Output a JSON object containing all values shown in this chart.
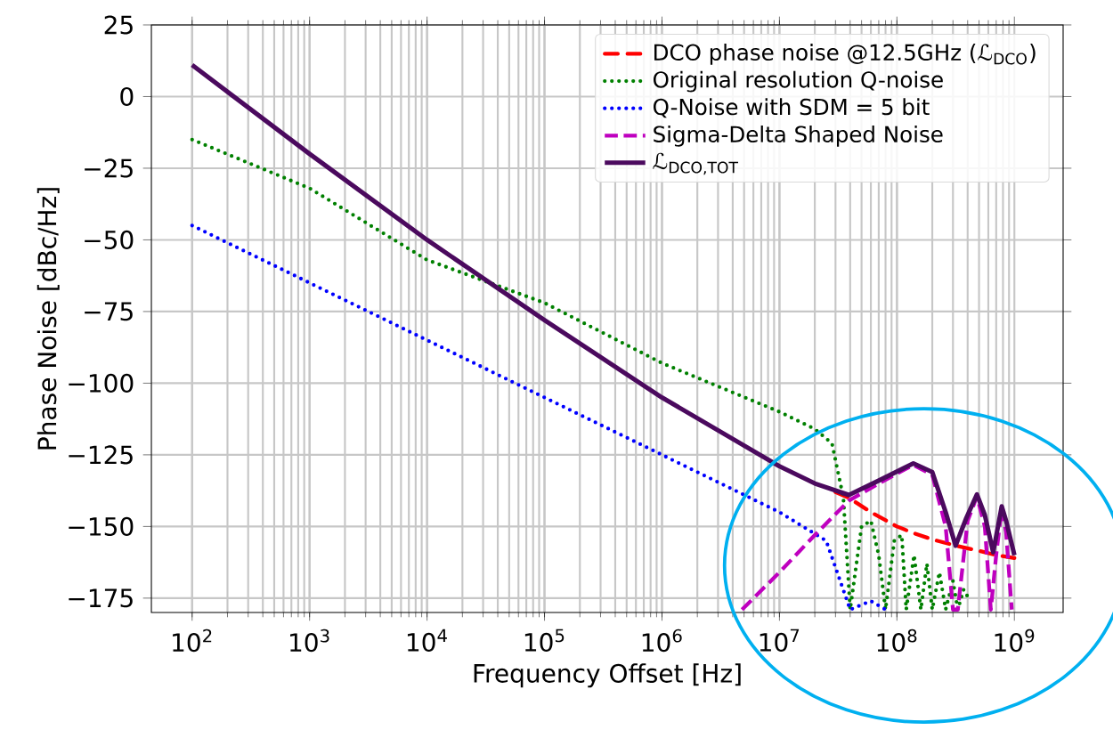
{
  "chart_data": {
    "type": "line",
    "xlabel": "Frequency Offset [Hz]",
    "ylabel": "Phase Noise [dBc/Hz]",
    "log": "x",
    "grid": true,
    "legend": "top right",
    "marker": "none",
    "xlim": [
      45,
      2600000000.0
    ],
    "ylim": [
      -180,
      25
    ],
    "xticks": [
      {
        "value": 100,
        "label": "10$^{2}$"
      },
      {
        "value": 1000,
        "label": "10$^{3}$"
      },
      {
        "value": 10000,
        "label": "10$^{4}$"
      },
      {
        "value": 100000,
        "label": "10$^{5}$"
      },
      {
        "value": 1000000,
        "label": "10$^{6}$"
      },
      {
        "value": 10000000,
        "label": "10$^{7}$"
      },
      {
        "value": 100000000,
        "label": "10$^{8}$"
      },
      {
        "value": 1000000000,
        "label": "10$^{9}$"
      }
    ],
    "yticks": [
      {
        "value": -175,
        "label": "−175"
      },
      {
        "value": -150,
        "label": "−150"
      },
      {
        "value": -125,
        "label": "−125"
      },
      {
        "value": -100,
        "label": "−100"
      },
      {
        "value": -75,
        "label": "−75"
      },
      {
        "value": -50,
        "label": "−50"
      },
      {
        "value": -25,
        "label": "−25"
      },
      0,
      25
    ],
    "series": [
      {
        "name": "DCO phase noise @12.5GHz (ℒ$_{DCO}$)",
        "color": "#ff0000",
        "line_style": "dashdot",
        "x": [
          30000000,
          39000000,
          60000000,
          100000000,
          140000000,
          200000000,
          316000000,
          500000000,
          700000000,
          1000000000
        ],
        "values": [
          -138,
          -140,
          -145,
          -150,
          -152.4,
          -154.5,
          -156.7,
          -158.5,
          -160,
          -161
        ]
      },
      {
        "name": "Original resolution Q-noise",
        "color": "#008000",
        "line_style": "dotted",
        "x": [
          100,
          1000,
          10000,
          100000,
          1000000,
          10000000,
          20000000,
          28000000,
          35000000,
          40000000,
          50000000,
          60000000,
          70000000,
          80000000,
          95000000,
          110000000,
          120000000,
          140000000,
          160000000,
          180000000,
          200000000,
          230000000,
          260000000,
          300000000,
          330000000,
          370000000,
          420000000
        ],
        "values": [
          -15,
          -32,
          -57,
          -72,
          -93,
          -110,
          -116,
          -121,
          -140,
          -179,
          -150,
          -148,
          -160,
          -179,
          -155,
          -153,
          -179,
          -160,
          -179,
          -163,
          -179,
          -166,
          -179,
          -169,
          -179,
          -172,
          -176
        ]
      },
      {
        "name": "Q-Noise with SDM = 5 bit",
        "color": "#0000ff",
        "line_style": "dotted",
        "x": [
          100,
          1000,
          10000,
          100000,
          1000000,
          10000000,
          25000000,
          40000000,
          60000000,
          80000000
        ],
        "values": [
          -45,
          -65,
          -85,
          -105,
          -125,
          -145,
          -155,
          -179,
          -176,
          -179
        ]
      },
      {
        "name": "Sigma-Delta Shaped Noise",
        "color": "#bf00bf",
        "line_style": "dashed",
        "x": [
          4800000,
          10000000,
          20000000,
          39000000,
          70000000,
          138000000,
          200000000,
          260000000,
          300000000,
          330000000,
          400000000,
          480000000,
          560000000,
          630000000,
          700000000,
          780000000,
          850000000,
          950000000
        ],
        "values": [
          -179,
          -166,
          -153,
          -141,
          -135,
          -128.5,
          -132,
          -150,
          -179,
          -179,
          -148,
          -139.5,
          -150,
          -179,
          -160,
          -143.5,
          -152,
          -179
        ]
      },
      {
        "name": "ℒ$_{DCO,TOT}$",
        "color": "#4b0a5e",
        "line_style": "solid",
        "x": [
          100,
          1000,
          10000,
          100000,
          1000000,
          10000000,
          20000000,
          39000000,
          70000000,
          138000000,
          200000000,
          260000000,
          316000000,
          390000000,
          480000000,
          560000000,
          660000000,
          780000000,
          850000000,
          1000000000
        ],
        "values": [
          11,
          -20,
          -50,
          -78,
          -105,
          -129,
          -135,
          -139,
          -134,
          -128,
          -131,
          -145,
          -156.7,
          -147,
          -138.8,
          -146,
          -159,
          -143,
          -148,
          -160
        ]
      }
    ]
  }
}
